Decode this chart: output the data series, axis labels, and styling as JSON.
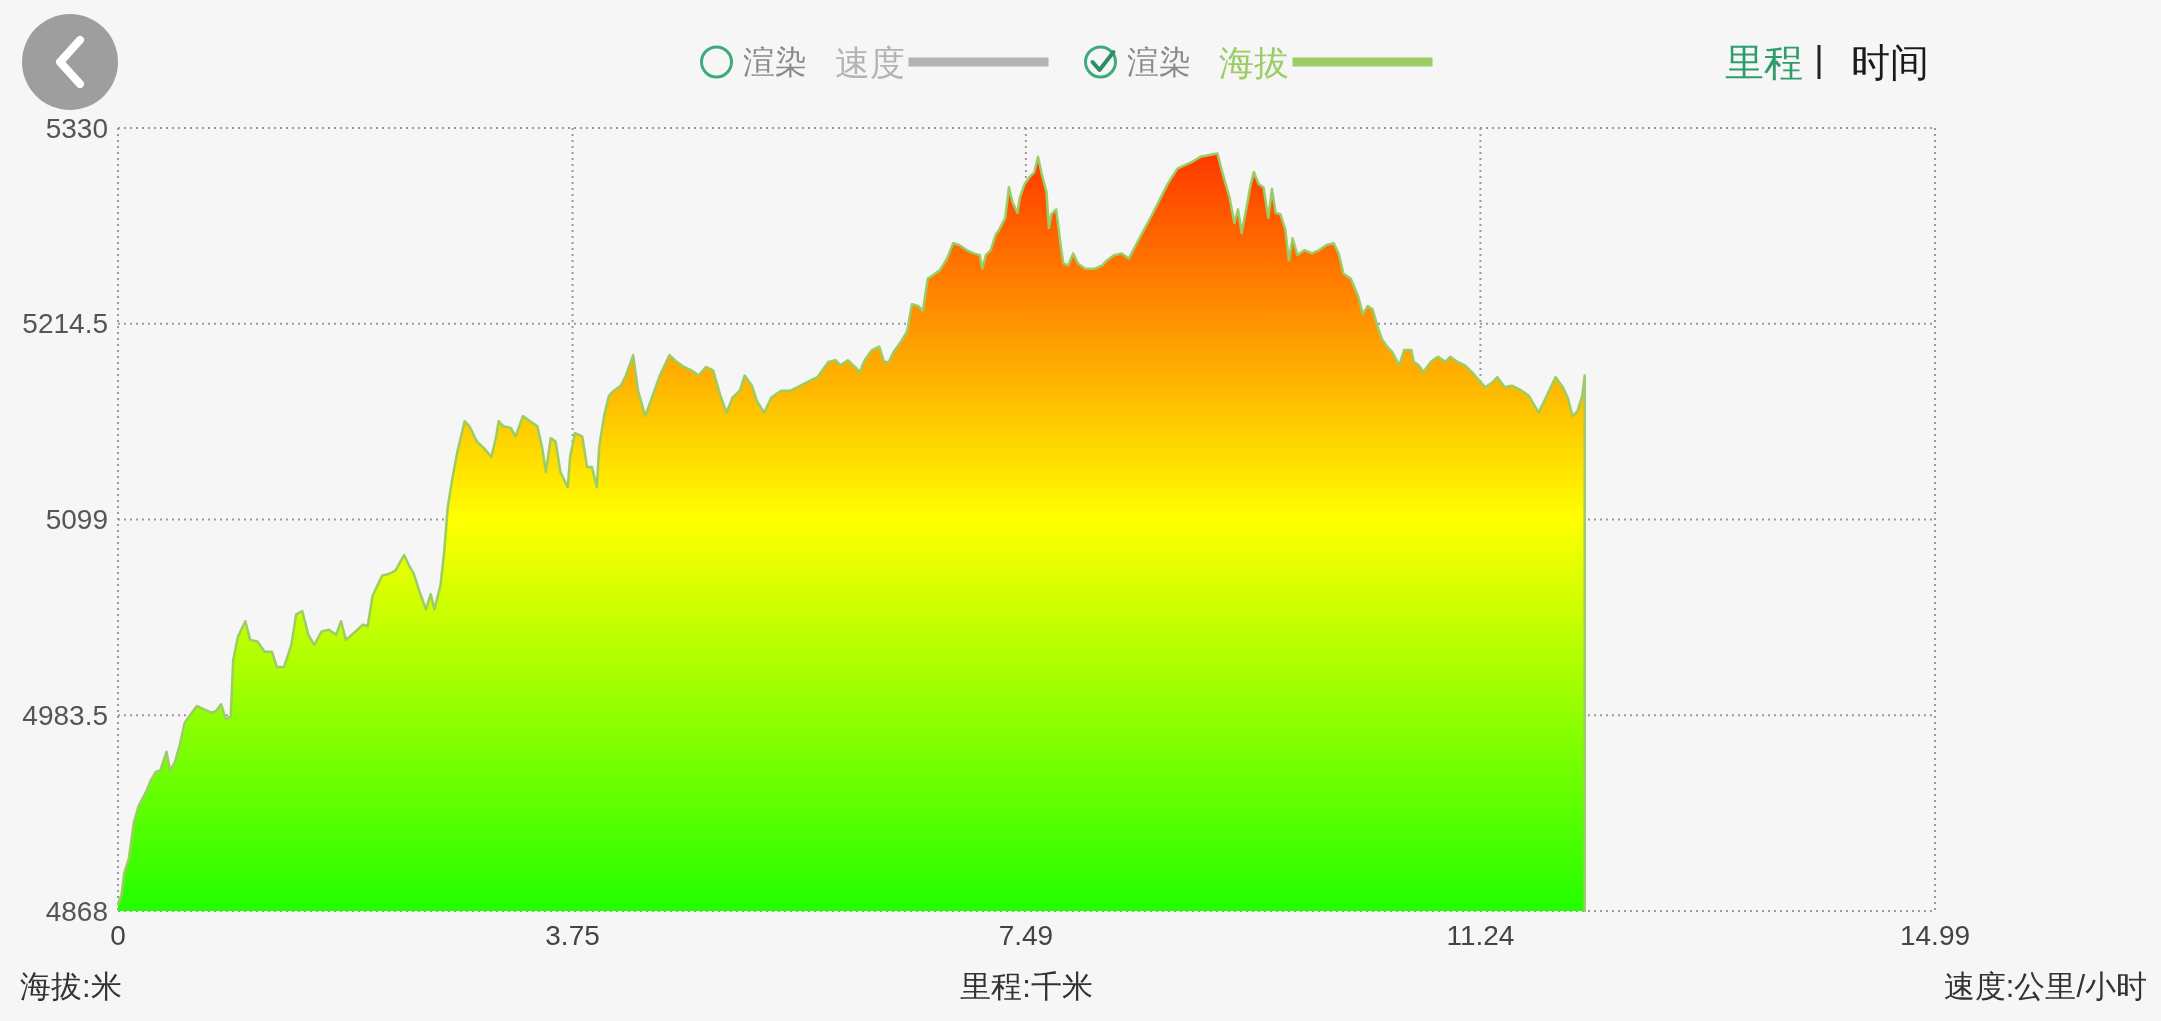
{
  "chart_data": {
    "type": "area",
    "xlabel": "里程:千米",
    "ylabel": "海拔:米",
    "y2label": "速度:公里/小时",
    "annotations": [
      "渲染",
      "渲染",
      "里程",
      "时间"
    ],
    "xlim": [
      0,
      14.99
    ],
    "xticks": [
      0,
      3.75,
      7.49,
      11.24,
      14.99
    ],
    "ylim": [
      4868,
      5330
    ],
    "yticks": [
      4868,
      4983.5,
      5099,
      5214.5,
      5330
    ],
    "grid": true,
    "legend": "top",
    "x": [
      0,
      0.03,
      0.05,
      0.09,
      0.13,
      0.17,
      0.23,
      0.27,
      0.31,
      0.35,
      0.4,
      0.43,
      0.47,
      0.51,
      0.55,
      0.59,
      0.65,
      0.71,
      0.77,
      0.81,
      0.85,
      0.89,
      0.93,
      0.95,
      0.99,
      1.05,
      1.09,
      1.15,
      1.21,
      1.27,
      1.31,
      1.37,
      1.43,
      1.47,
      1.52,
      1.57,
      1.62,
      1.68,
      1.74,
      1.8,
      1.84,
      1.88,
      1.96,
      2.02,
      2.06,
      2.1,
      2.18,
      2.24,
      2.29,
      2.36,
      2.4,
      2.44,
      2.48,
      2.54,
      2.58,
      2.61,
      2.66,
      2.69,
      2.72,
      2.76,
      2.8,
      2.86,
      2.9,
      2.96,
      3.02,
      3.08,
      3.12,
      3.14,
      3.18,
      3.24,
      3.28,
      3.34,
      3.4,
      3.46,
      3.5,
      3.53,
      3.57,
      3.61,
      3.65,
      3.71,
      3.73,
      3.77,
      3.83,
      3.87,
      3.91,
      3.95,
      3.97,
      4.01,
      4.05,
      4.09,
      4.15,
      4.19,
      4.25,
      4.29,
      4.35,
      4.41,
      4.47,
      4.55,
      4.61,
      4.67,
      4.73,
      4.79,
      4.85,
      4.91,
      4.97,
      5.02,
      5.07,
      5.13,
      5.17,
      5.23,
      5.27,
      5.33,
      5.39,
      5.47,
      5.55,
      5.63,
      5.71,
      5.77,
      5.82,
      5.86,
      5.92,
      5.96,
      6.02,
      6.08,
      6.12,
      6.16,
      6.22,
      6.28,
      6.32,
      6.36,
      6.4,
      6.46,
      6.51,
      6.55,
      6.6,
      6.64,
      6.68,
      6.72,
      6.78,
      6.84,
      6.89,
      6.94,
      7,
      7.06,
      7.11,
      7.13,
      7.16,
      7.2,
      7.24,
      7.27,
      7.32,
      7.35,
      7.38,
      7.42,
      7.44,
      7.48,
      7.52,
      7.56,
      7.59,
      7.62,
      7.66,
      7.68,
      7.7,
      7.74,
      7.78,
      7.8,
      7.84,
      7.88,
      7.92,
      7.98,
      8.06,
      8.12,
      8.16,
      8.22,
      8.28,
      8.34,
      8.42,
      8.54,
      8.66,
      8.74,
      8.86,
      8.93,
      9.07,
      9.11,
      9.17,
      9.21,
      9.24,
      9.27,
      9.31,
      9.34,
      9.37,
      9.41,
      9.45,
      9.49,
      9.52,
      9.55,
      9.59,
      9.63,
      9.66,
      9.69,
      9.73,
      9.79,
      9.85,
      9.91,
      9.97,
      10.03,
      10.07,
      10.11,
      10.17,
      10.23,
      10.27,
      10.31,
      10.35,
      10.39,
      10.43,
      10.47,
      10.51,
      10.57,
      10.61,
      10.67,
      10.69,
      10.73,
      10.77,
      10.83,
      10.89,
      10.95,
      10.99,
      11.05,
      11.11,
      11.17,
      11.23,
      11.28,
      11.34,
      11.38,
      11.44,
      11.5,
      11.58,
      11.64,
      11.72,
      11.78,
      11.86,
      11.92,
      11.96,
      12,
      12.04,
      12.08,
      12.1
    ],
    "series": [
      {
        "name": "速度",
        "color": "#b4b4b4",
        "values": [
          null,
          null,
          null,
          null,
          null,
          null,
          null,
          null,
          null,
          null,
          null,
          null,
          null,
          null,
          null,
          null,
          null,
          null,
          null,
          null,
          null,
          null,
          null,
          null,
          null,
          null,
          null,
          null,
          null,
          null,
          null,
          null,
          null,
          null,
          null,
          null,
          null,
          null,
          null,
          null,
          null,
          null,
          null,
          null,
          null,
          null,
          null,
          null,
          null,
          null,
          null,
          null,
          null,
          null,
          null,
          null,
          null,
          null,
          null,
          null,
          null,
          null,
          null,
          null,
          null,
          null,
          null,
          null,
          null,
          null,
          null,
          null,
          null,
          null,
          null,
          null,
          null,
          null,
          null,
          null,
          null,
          null,
          null,
          null,
          null,
          null,
          null,
          null,
          null,
          null,
          null,
          null,
          null,
          null,
          null,
          null,
          null,
          null,
          null,
          null,
          null,
          null,
          null,
          null,
          null,
          null,
          null,
          null,
          null,
          null,
          null,
          null,
          null,
          null,
          null,
          null,
          null,
          null,
          null,
          null,
          null,
          null,
          null,
          null,
          null,
          null,
          null,
          null,
          null,
          null,
          null,
          null,
          null,
          null,
          null,
          null,
          null,
          null,
          null,
          null,
          null,
          null,
          null,
          null,
          null,
          null,
          null,
          null,
          null,
          null,
          null,
          null,
          null,
          null,
          null,
          null,
          null,
          null,
          null,
          null,
          null,
          null,
          null,
          null,
          null,
          null,
          null,
          null,
          null,
          null,
          null,
          null,
          null,
          null,
          null,
          null,
          null,
          null,
          null,
          null,
          null,
          null,
          null,
          null,
          null,
          null,
          null,
          null,
          null,
          null,
          null,
          null,
          null,
          null,
          null,
          null,
          null,
          null,
          null,
          null,
          null,
          null,
          null,
          null,
          null,
          null,
          null,
          null,
          null,
          null,
          null,
          null,
          null,
          null,
          null,
          null,
          null,
          null,
          null,
          null,
          null,
          null,
          null,
          null,
          null,
          null,
          null,
          null,
          null,
          null,
          null,
          null,
          null,
          null,
          null,
          null,
          null,
          null,
          null,
          null,
          null,
          null,
          null,
          null,
          null,
          null,
          null
        ]
      },
      {
        "name": "海拔",
        "color": "#9ccc65",
        "values": [
          4872,
          4878,
          4890,
          4899,
          4920,
          4930,
          4938,
          4945,
          4950,
          4951,
          4962,
          4951,
          4956,
          4966,
          4979,
          4983,
          4989,
          4987,
          4985,
          4986,
          4990,
          4981,
          4983,
          5016,
          5030,
          5039,
          5028,
          5027,
          5021,
          5021,
          5012,
          5012,
          5025,
          5043,
          5045,
          5031,
          5025,
          5033,
          5034,
          5031,
          5039,
          5028,
          5033,
          5037,
          5036,
          5054,
          5066,
          5067,
          5069,
          5078,
          5072,
          5067,
          5058,
          5046,
          5055,
          5046,
          5060,
          5079,
          5106,
          5124,
          5139,
          5157,
          5154,
          5145,
          5141,
          5136,
          5148,
          5157,
          5154,
          5153,
          5148,
          5160,
          5157,
          5154,
          5141,
          5127,
          5147,
          5145,
          5127,
          5118,
          5136,
          5150,
          5148,
          5130,
          5130,
          5118,
          5142,
          5160,
          5172,
          5175,
          5178,
          5184,
          5196,
          5175,
          5160,
          5172,
          5184,
          5196,
          5192,
          5189,
          5187,
          5184,
          5189,
          5187,
          5172,
          5162,
          5171,
          5175,
          5184,
          5178,
          5169,
          5162,
          5171,
          5175,
          5175,
          5178,
          5181,
          5183,
          5188,
          5192,
          5193,
          5190,
          5193,
          5189,
          5186,
          5193,
          5199,
          5201,
          5192,
          5192,
          5198,
          5204,
          5210,
          5226,
          5225,
          5222,
          5241,
          5243,
          5246,
          5253,
          5262,
          5261,
          5258,
          5256,
          5255,
          5247,
          5255,
          5258,
          5267,
          5270,
          5277,
          5295,
          5286,
          5280,
          5289,
          5297,
          5301,
          5304,
          5313,
          5303,
          5292,
          5271,
          5279,
          5282,
          5259,
          5250,
          5249,
          5256,
          5250,
          5247,
          5247,
          5249,
          5252,
          5255,
          5256,
          5253,
          5264,
          5280,
          5297,
          5306,
          5310,
          5313,
          5315,
          5304,
          5289,
          5274,
          5282,
          5268,
          5283,
          5295,
          5304,
          5297,
          5295,
          5277,
          5294,
          5280,
          5279,
          5270,
          5252,
          5265,
          5255,
          5258,
          5256,
          5258,
          5261,
          5262,
          5256,
          5244,
          5241,
          5231,
          5220,
          5225,
          5223,
          5213,
          5205,
          5201,
          5198,
          5190,
          5199,
          5199,
          5192,
          5190,
          5186,
          5192,
          5195,
          5192,
          5195,
          5192,
          5190,
          5186,
          5181,
          5177,
          5180,
          5183,
          5177,
          5178,
          5175,
          5172,
          5162,
          5171,
          5183,
          5177,
          5171,
          5160,
          5163,
          5172,
          5184
        ]
      }
    ]
  }
}
